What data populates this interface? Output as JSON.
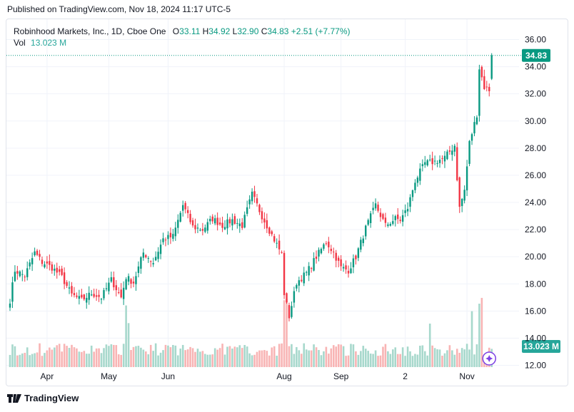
{
  "header": {
    "published": "Published on TradingView.com, Nov 18, 2024 11:17 UTC-5"
  },
  "legend": {
    "symbol": "Robinhood Markets, Inc., 1D, Cboe One",
    "open_label": "O",
    "open": "33.11",
    "high_label": "H",
    "high": "34.92",
    "low_label": "L",
    "low": "32.90",
    "close_label": "C",
    "close": "34.83",
    "change": "+2.51 (+7.77%)",
    "vol_label": "Vol",
    "vol_value": "13.023 M"
  },
  "footer": {
    "brand": "TradingView"
  },
  "colors": {
    "up": "#089981",
    "down": "#f23645",
    "vol_up": "#a7d8cc",
    "vol_down": "#f8b4b4",
    "accent": "#7b3fe4"
  },
  "chart_data": {
    "type": "candlestick",
    "price_axis": {
      "ticks": [
        "36.00",
        "34.00",
        "32.00",
        "30.00",
        "28.00",
        "26.00",
        "24.00",
        "22.00",
        "20.00",
        "18.00",
        "16.00",
        "14.00",
        "12.00"
      ],
      "ylim": [
        12,
        36
      ]
    },
    "time_axis": {
      "ticks": [
        "Apr",
        "May",
        "Jun",
        "Aug",
        "Sep",
        "2",
        "Nov"
      ]
    },
    "last_price_label": "34.83",
    "last_volume_label": "13.023 M",
    "price_anchors": [
      {
        "t": 0,
        "p": 16.8
      },
      {
        "t": 2,
        "p": 19.0
      },
      {
        "t": 6,
        "p": 18.6
      },
      {
        "t": 10,
        "p": 20.3
      },
      {
        "t": 13,
        "p": 19.6
      },
      {
        "t": 17,
        "p": 19.2
      },
      {
        "t": 21,
        "p": 18.5
      },
      {
        "t": 25,
        "p": 17.2
      },
      {
        "t": 29,
        "p": 16.8
      },
      {
        "t": 33,
        "p": 17.3
      },
      {
        "t": 37,
        "p": 17.0
      },
      {
        "t": 41,
        "p": 18.3
      },
      {
        "t": 45,
        "p": 17.0
      },
      {
        "t": 47,
        "p": 18.5
      },
      {
        "t": 50,
        "p": 18.1
      },
      {
        "t": 54,
        "p": 20.3
      },
      {
        "t": 58,
        "p": 19.6
      },
      {
        "t": 62,
        "p": 21.3
      },
      {
        "t": 66,
        "p": 21.5
      },
      {
        "t": 70,
        "p": 23.8
      },
      {
        "t": 74,
        "p": 22.2
      },
      {
        "t": 78,
        "p": 22.0
      },
      {
        "t": 82,
        "p": 22.8
      },
      {
        "t": 86,
        "p": 22.3
      },
      {
        "t": 90,
        "p": 22.7
      },
      {
        "t": 94,
        "p": 22.3
      },
      {
        "t": 98,
        "p": 24.6
      },
      {
        "t": 102,
        "p": 23.0
      },
      {
        "t": 106,
        "p": 21.6
      },
      {
        "t": 110,
        "p": 20.2
      },
      {
        "t": 111,
        "p": 17.3
      },
      {
        "t": 113,
        "p": 15.6
      },
      {
        "t": 116,
        "p": 18.1
      },
      {
        "t": 120,
        "p": 18.8
      },
      {
        "t": 124,
        "p": 20.0
      },
      {
        "t": 128,
        "p": 21.1
      },
      {
        "t": 131,
        "p": 20.3
      },
      {
        "t": 134,
        "p": 19.2
      },
      {
        "t": 137,
        "p": 19.0
      },
      {
        "t": 140,
        "p": 20.0
      },
      {
        "t": 144,
        "p": 22.1
      },
      {
        "t": 148,
        "p": 23.8
      },
      {
        "t": 152,
        "p": 22.3
      },
      {
        "t": 156,
        "p": 22.8
      },
      {
        "t": 158,
        "p": 22.7
      },
      {
        "t": 161,
        "p": 23.6
      },
      {
        "t": 164,
        "p": 25.6
      },
      {
        "t": 168,
        "p": 26.9
      },
      {
        "t": 172,
        "p": 27.0
      },
      {
        "t": 176,
        "p": 27.3
      },
      {
        "t": 180,
        "p": 28.2
      },
      {
        "t": 181,
        "p": 25.8
      },
      {
        "t": 182,
        "p": 23.6
      },
      {
        "t": 184,
        "p": 24.9
      },
      {
        "t": 186,
        "p": 28.4
      },
      {
        "t": 189,
        "p": 30.5
      },
      {
        "t": 190,
        "p": 33.9
      },
      {
        "t": 192,
        "p": 32.5
      },
      {
        "t": 194,
        "p": 32.3
      },
      {
        "t": 195,
        "p": 34.8
      }
    ],
    "volume_ylim": [
      0,
      60
    ]
  }
}
